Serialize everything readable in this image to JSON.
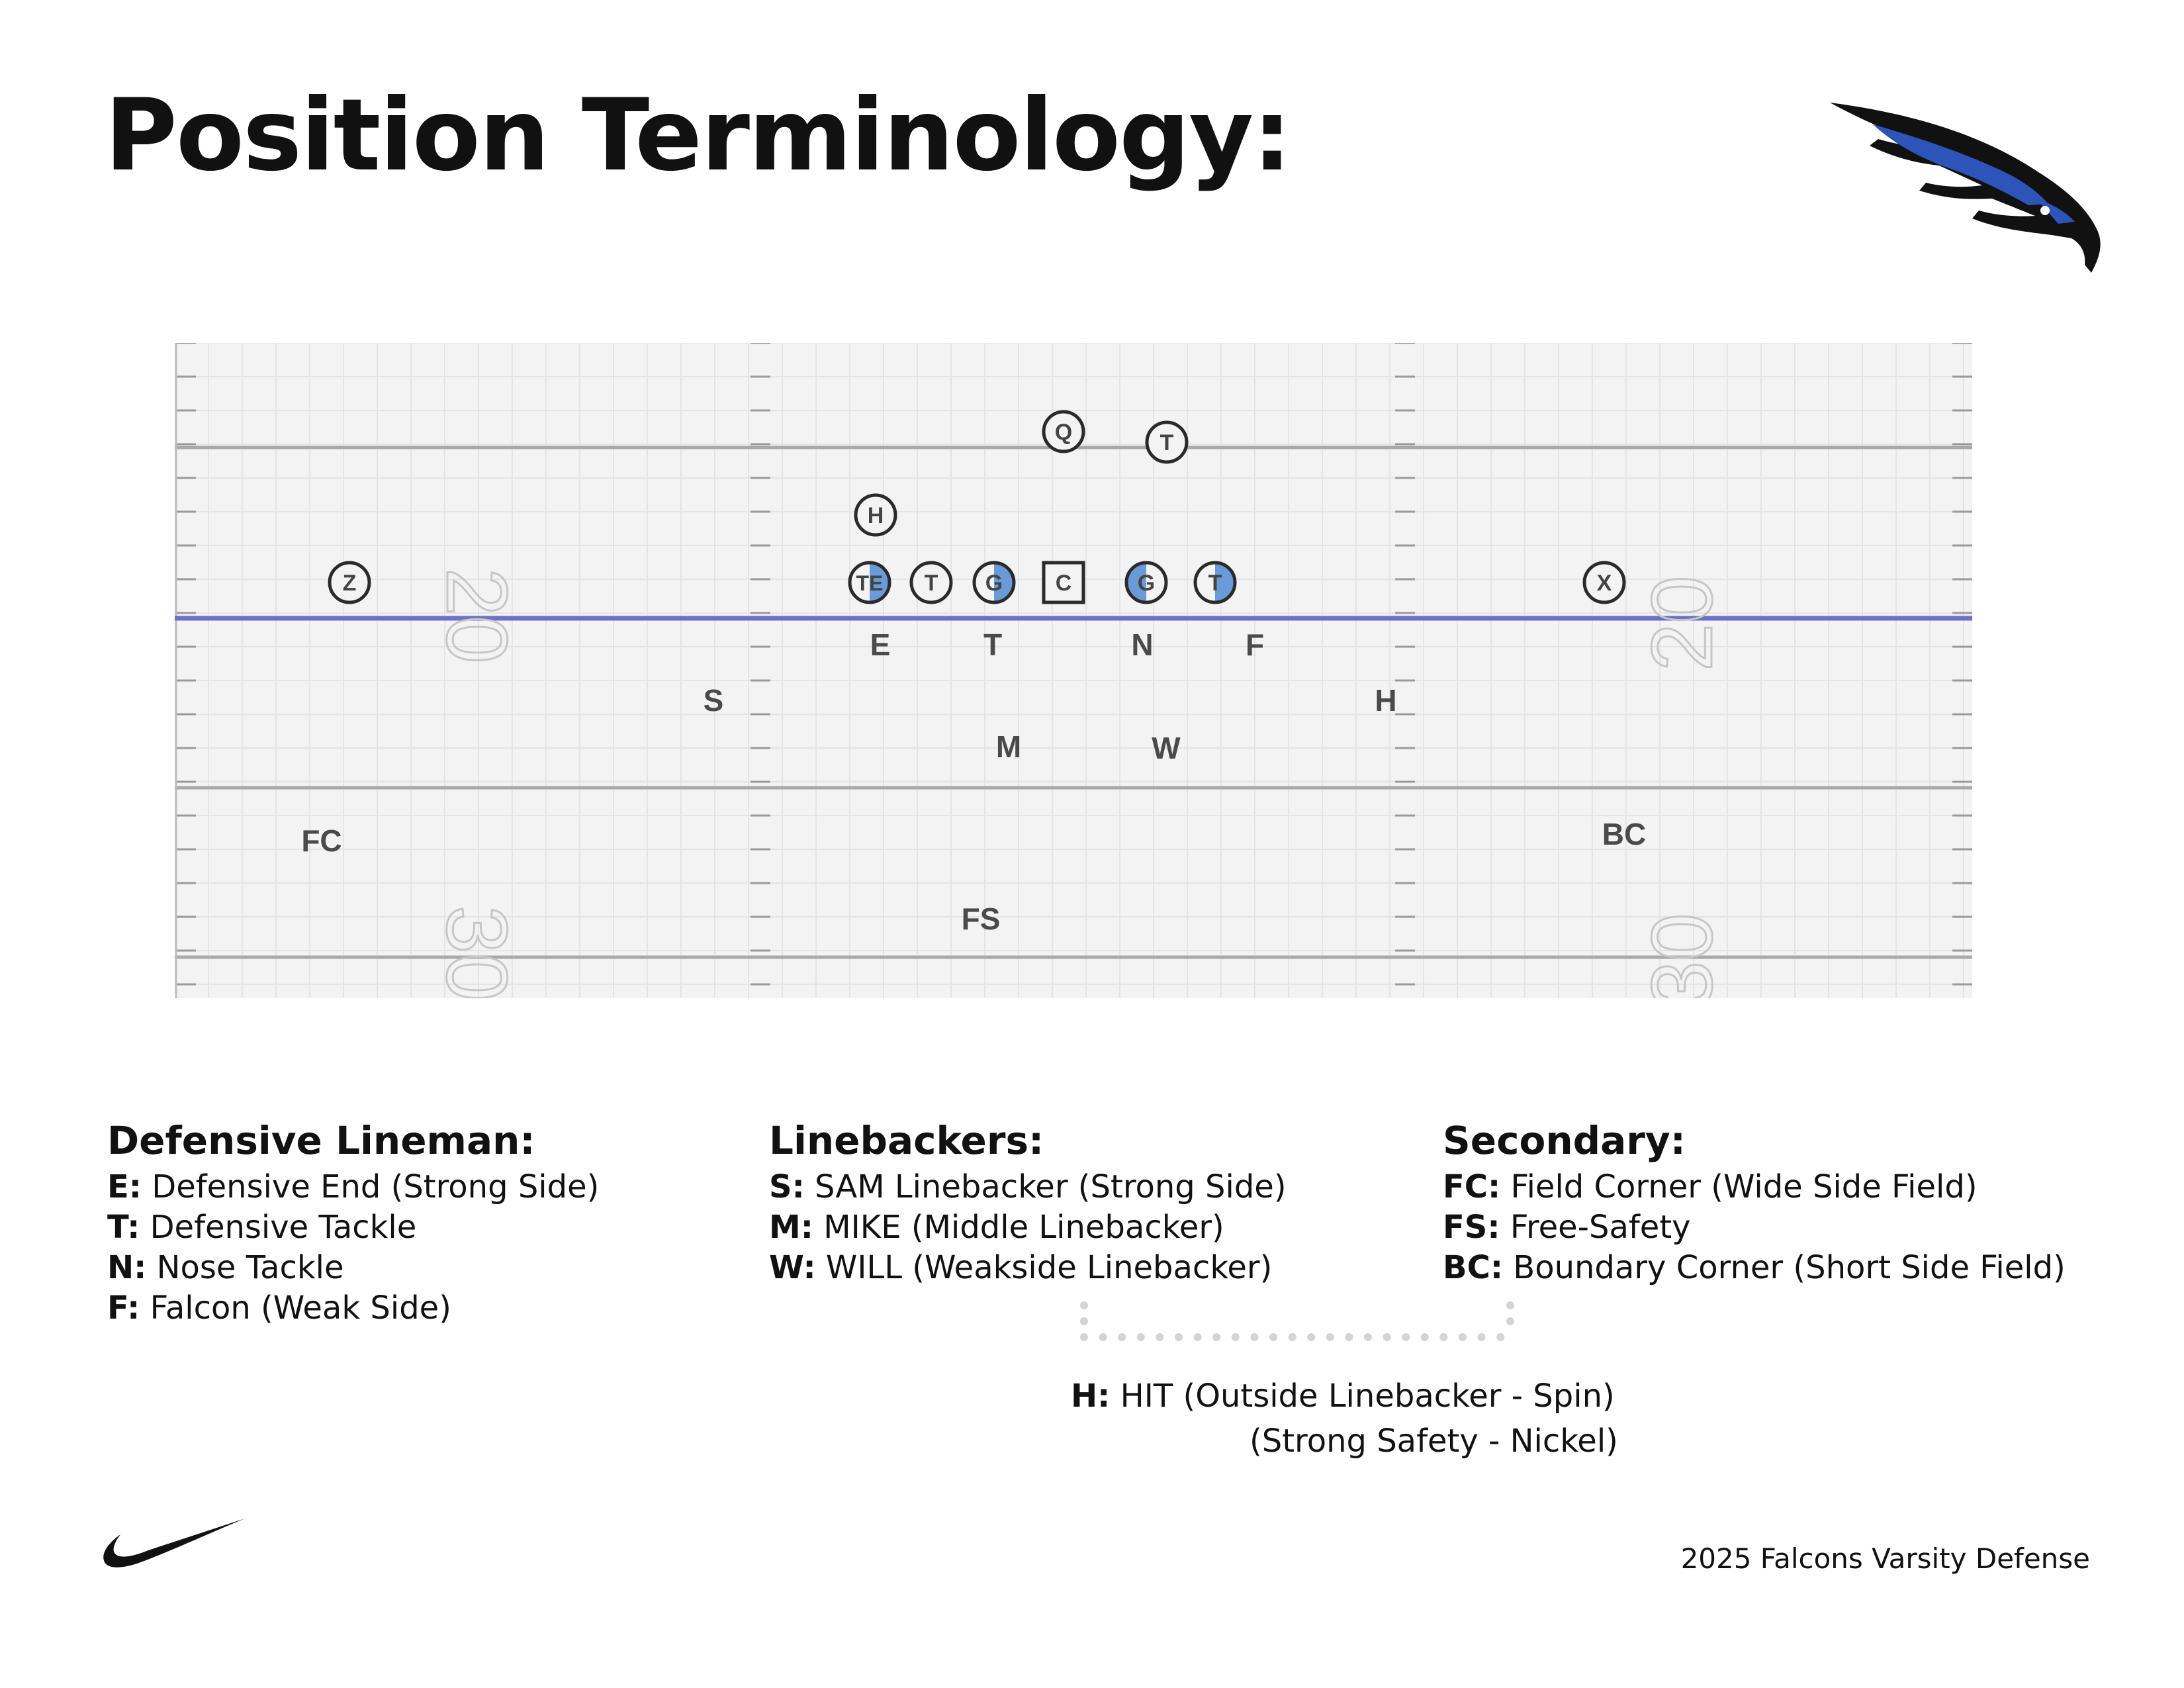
{
  "title": "Position Terminology:",
  "icons": {
    "logo": "falcon-head-logo",
    "swoosh": "swoosh-logo"
  },
  "colors": {
    "accent_blue": "#6a9ad8",
    "los_line": "#6f6fc8",
    "logo_blue": "#2d54b8"
  },
  "field": {
    "yard_numbers": [
      "20",
      "30",
      "20",
      "30"
    ],
    "offense": [
      {
        "id": "Q",
        "label": "Q",
        "shape": "circle",
        "fill": "none"
      },
      {
        "id": "T-back",
        "label": "T",
        "shape": "circle",
        "fill": "none"
      },
      {
        "id": "H-back",
        "label": "H",
        "shape": "circle",
        "fill": "none"
      },
      {
        "id": "Z",
        "label": "Z",
        "shape": "circle",
        "fill": "none"
      },
      {
        "id": "TE",
        "label": "TE",
        "shape": "circle",
        "fill": "right-half"
      },
      {
        "id": "T-left",
        "label": "T",
        "shape": "circle",
        "fill": "none"
      },
      {
        "id": "G-left",
        "label": "G",
        "shape": "circle",
        "fill": "right-half"
      },
      {
        "id": "C",
        "label": "C",
        "shape": "square",
        "fill": "none"
      },
      {
        "id": "G-right",
        "label": "G",
        "shape": "circle",
        "fill": "left-half"
      },
      {
        "id": "T-right",
        "label": "T",
        "shape": "circle",
        "fill": "right-half"
      },
      {
        "id": "X",
        "label": "X",
        "shape": "circle",
        "fill": "none"
      }
    ],
    "defense": [
      {
        "id": "E",
        "label": "E"
      },
      {
        "id": "T",
        "label": "T"
      },
      {
        "id": "N",
        "label": "N"
      },
      {
        "id": "F",
        "label": "F"
      },
      {
        "id": "S",
        "label": "S"
      },
      {
        "id": "H",
        "label": "H"
      },
      {
        "id": "M",
        "label": "M"
      },
      {
        "id": "W",
        "label": "W"
      },
      {
        "id": "FC",
        "label": "FC"
      },
      {
        "id": "BC",
        "label": "BC"
      },
      {
        "id": "FS",
        "label": "FS"
      }
    ]
  },
  "legend": {
    "lineman": {
      "heading": "Defensive Lineman:",
      "items": [
        {
          "code": "E:",
          "desc": " Defensive End (Strong Side)"
        },
        {
          "code": "T:",
          "desc": " Defensive Tackle"
        },
        {
          "code": "N:",
          "desc": " Nose Tackle"
        },
        {
          "code": "F:",
          "desc": " Falcon (Weak Side)"
        }
      ]
    },
    "linebackers": {
      "heading": "Linebackers:",
      "items": [
        {
          "code": "S:",
          "desc": " SAM Linebacker (Strong Side)"
        },
        {
          "code": "M:",
          "desc": " MIKE (Middle Linebacker)"
        },
        {
          "code": "W:",
          "desc": " WILL (Weakside Linebacker)"
        }
      ]
    },
    "secondary": {
      "heading": "Secondary:",
      "items": [
        {
          "code": "FC:",
          "desc": " Field Corner (Wide Side Field)"
        },
        {
          "code": "FS:",
          "desc": " Free-Safety"
        },
        {
          "code": "BC:",
          "desc": " Boundary Corner (Short Side Field)"
        }
      ]
    },
    "hit": {
      "code": "H:",
      "line1": " HIT (Outside Linebacker - Spin)",
      "line2": "(Strong Safety - Nickel)"
    }
  },
  "footer": "2025 Falcons Varsity Defense"
}
